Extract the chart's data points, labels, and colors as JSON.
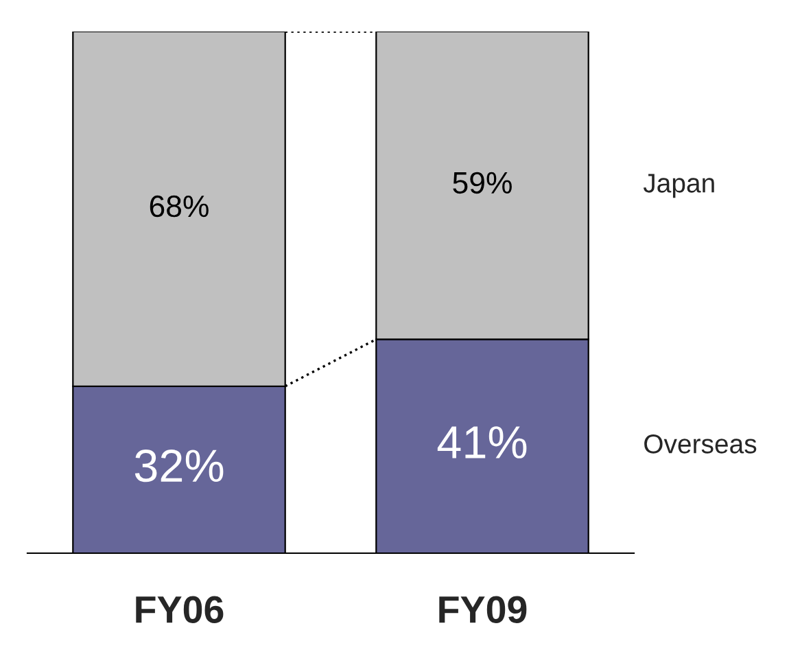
{
  "chart_data": {
    "type": "bar",
    "stacked": true,
    "legend": false,
    "categories": [
      "FY06",
      "FY09"
    ],
    "series": [
      {
        "name": "Overseas",
        "color": "#666699",
        "values": [
          32,
          41
        ],
        "value_labels": [
          "32%",
          "41%"
        ]
      },
      {
        "name": "Japan",
        "color": "#c0c0c0",
        "values": [
          68,
          59
        ],
        "value_labels": [
          "68%",
          "59%"
        ]
      }
    ]
  }
}
